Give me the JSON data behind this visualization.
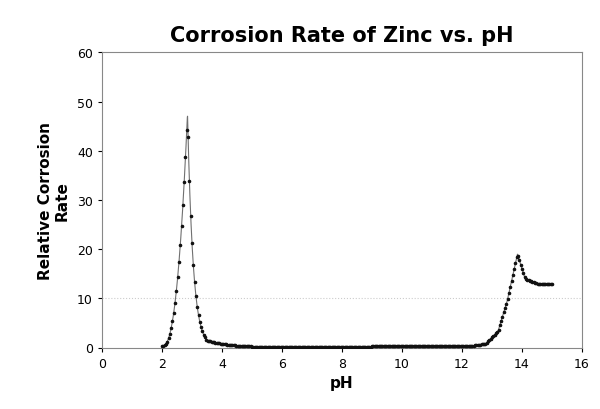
{
  "title": "Corrosion Rate of Zinc vs. pH",
  "xlabel": "pH",
  "ylabel": "Relative Corrosion\nRate",
  "xlim": [
    0,
    16
  ],
  "ylim": [
    0,
    60
  ],
  "xticks": [
    0,
    2,
    4,
    6,
    8,
    10,
    12,
    14,
    16
  ],
  "yticks": [
    0,
    10,
    20,
    30,
    40,
    50,
    60
  ],
  "grid_y_value": 10,
  "grid_color": "#aaaaaa",
  "line_color": "#111111",
  "bg_color": "#ffffff",
  "outer_bg": "#ffffff",
  "border_color": "#999999",
  "title_fontsize": 15,
  "label_fontsize": 11,
  "tick_fontsize": 9,
  "peak_ph": 2.85,
  "peak_val": 47.5,
  "alkaline_peak_ph": 13.85,
  "alkaline_peak_val": 19.0
}
